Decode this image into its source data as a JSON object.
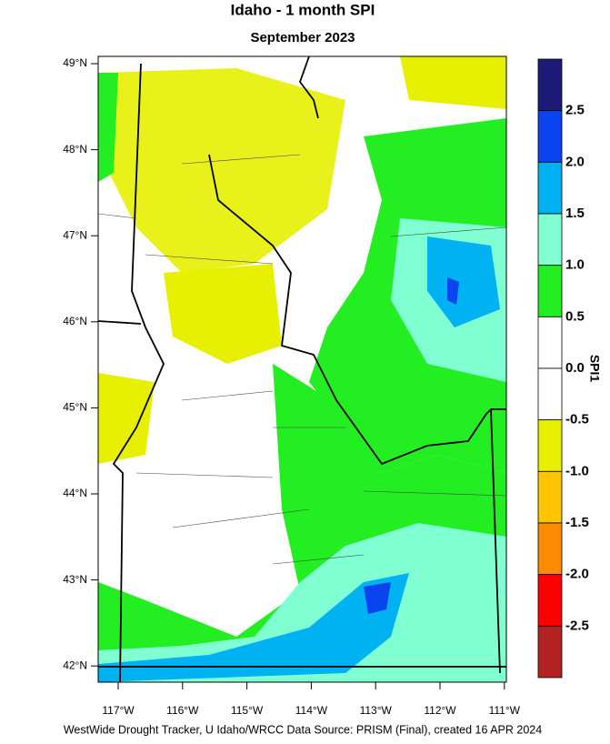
{
  "header": {
    "title": "Idaho - 1 month SPI",
    "subtitle": "September 2023"
  },
  "map": {
    "lat_labels": [
      "49°N",
      "48°N",
      "47°N",
      "46°N",
      "45°N",
      "44°N",
      "43°N",
      "42°N"
    ],
    "lon_labels": [
      "117°W",
      "116°W",
      "115°W",
      "114°W",
      "113°W",
      "112°W",
      "111°W"
    ]
  },
  "colorbar": {
    "title": "SPI1",
    "colors": [
      "#1c1c78",
      "#0a44ee",
      "#00b2f2",
      "#80ffd2",
      "#22ee22",
      "#ffffff",
      "#ffffff",
      "#e6f000",
      "#ffc400",
      "#ff8c00",
      "#ff0000",
      "#b22222"
    ],
    "labels": [
      "2.5",
      "2.0",
      "1.5",
      "1.0",
      "0.5",
      "0.0",
      "-0.5",
      "-1.0",
      "-1.5",
      "-2.0",
      "-2.5"
    ]
  },
  "footer": "WestWide Drought Tracker, U Idaho/WRCC Data Source: PRISM (Final), created 16 APR 2024"
}
